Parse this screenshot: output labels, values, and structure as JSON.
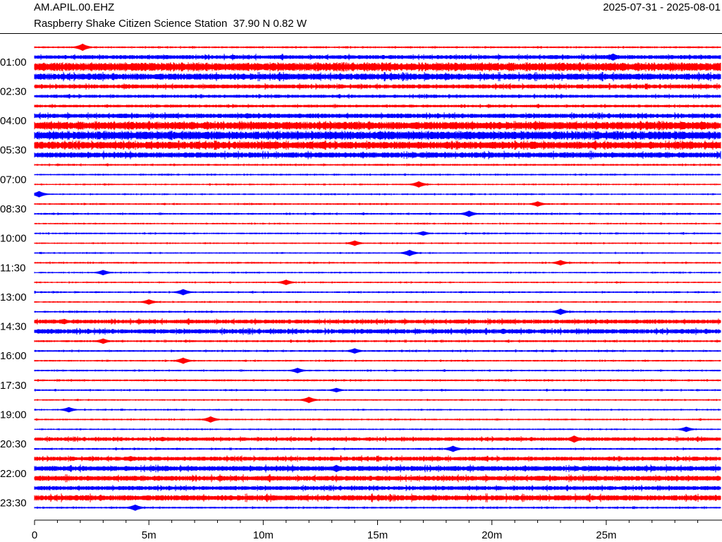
{
  "header": {
    "station_code": "AM.APIL.00.EHZ",
    "station_desc": "Raspberry Shake Citizen Science Station  37.90 N 0.82 W",
    "date_range": "2025-07-31 - 2025-08-01"
  },
  "colors": {
    "odd_trace": "#ff0000",
    "even_trace": "#0000ff",
    "axis": "#000000"
  },
  "chart_data": {
    "type": "line",
    "subtype": "helicorder",
    "rows_per_day": 48,
    "minutes_per_row": 30,
    "row_time_labels": [
      "01:00",
      "02:30",
      "04:00",
      "05:30",
      "07:00",
      "08:30",
      "10:00",
      "11:30",
      "13:00",
      "14:30",
      "16:00",
      "17:30",
      "19:00",
      "20:30",
      "22:00",
      "23:30"
    ],
    "row_label_hours": [
      1,
      2.5,
      4,
      5.5,
      7,
      8.5,
      10,
      11.5,
      13,
      14.5,
      16,
      17.5,
      19,
      20.5,
      22,
      23.5
    ],
    "x_axis": {
      "tick_labels": [
        "0",
        "5m",
        "10m",
        "15m",
        "20m",
        "25m"
      ],
      "tick_values_min": [
        0,
        5,
        10,
        15,
        20,
        25
      ],
      "xlim_min": [
        0,
        30
      ]
    },
    "row_amplitude": [
      0.2,
      0.45,
      0.9,
      0.7,
      0.45,
      0.35,
      0.3,
      0.5,
      0.85,
      0.9,
      0.8,
      0.6,
      0.2,
      0.18,
      0.16,
      0.16,
      0.18,
      0.2,
      0.16,
      0.18,
      0.16,
      0.16,
      0.18,
      0.16,
      0.16,
      0.18,
      0.16,
      0.2,
      0.45,
      0.5,
      0.22,
      0.2,
      0.18,
      0.18,
      0.2,
      0.18,
      0.16,
      0.16,
      0.18,
      0.16,
      0.4,
      0.2,
      0.45,
      0.55,
      0.55,
      0.45,
      0.6,
      0.2
    ],
    "events": [
      {
        "row": 0,
        "minute": 2.1,
        "amp": 0.8
      },
      {
        "row": 1,
        "minute": 25.3,
        "amp": 0.8
      },
      {
        "row": 3,
        "minute": 4.0,
        "amp": 0.5
      },
      {
        "row": 4,
        "minute": 4.0,
        "amp": 0.5
      },
      {
        "row": 7,
        "minute": 9.3,
        "amp": 0.6
      },
      {
        "row": 8,
        "minute": 16.0,
        "amp": 0.5
      },
      {
        "row": 9,
        "minute": 26.0,
        "amp": 0.6
      },
      {
        "row": 10,
        "minute": 25.0,
        "amp": 0.5
      },
      {
        "row": 14,
        "minute": 16.8,
        "amp": 0.7
      },
      {
        "row": 15,
        "minute": 0.2,
        "amp": 0.7
      },
      {
        "row": 16,
        "minute": 22.0,
        "amp": 0.6
      },
      {
        "row": 17,
        "minute": 19.0,
        "amp": 0.7
      },
      {
        "row": 19,
        "minute": 17.0,
        "amp": 0.5
      },
      {
        "row": 20,
        "minute": 14.0,
        "amp": 0.6
      },
      {
        "row": 21,
        "minute": 16.4,
        "amp": 0.7
      },
      {
        "row": 22,
        "minute": 23.0,
        "amp": 0.6
      },
      {
        "row": 23,
        "minute": 3.0,
        "amp": 0.6
      },
      {
        "row": 24,
        "minute": 11.0,
        "amp": 0.6
      },
      {
        "row": 25,
        "minute": 6.5,
        "amp": 0.7
      },
      {
        "row": 26,
        "minute": 5.0,
        "amp": 0.6
      },
      {
        "row": 27,
        "minute": 23.0,
        "amp": 0.7
      },
      {
        "row": 28,
        "minute": 1.3,
        "amp": 0.6
      },
      {
        "row": 29,
        "minute": 20.5,
        "amp": 0.6
      },
      {
        "row": 30,
        "minute": 3.0,
        "amp": 0.6
      },
      {
        "row": 31,
        "minute": 14.0,
        "amp": 0.6
      },
      {
        "row": 32,
        "minute": 6.5,
        "amp": 0.7
      },
      {
        "row": 33,
        "minute": 11.5,
        "amp": 0.6
      },
      {
        "row": 35,
        "minute": 13.2,
        "amp": 0.5
      },
      {
        "row": 36,
        "minute": 12.0,
        "amp": 0.7
      },
      {
        "row": 37,
        "minute": 1.5,
        "amp": 0.6
      },
      {
        "row": 38,
        "minute": 7.7,
        "amp": 0.7
      },
      {
        "row": 39,
        "minute": 28.5,
        "amp": 0.6
      },
      {
        "row": 40,
        "minute": 5.6,
        "amp": 0.5
      },
      {
        "row": 40,
        "minute": 23.6,
        "amp": 0.8
      },
      {
        "row": 41,
        "minute": 18.3,
        "amp": 0.7
      },
      {
        "row": 42,
        "minute": 4.2,
        "amp": 0.6
      },
      {
        "row": 43,
        "minute": 13.2,
        "amp": 0.8
      },
      {
        "row": 44,
        "minute": 6.0,
        "amp": 0.5
      },
      {
        "row": 47,
        "minute": 4.4,
        "amp": 0.7
      }
    ],
    "title": "",
    "xlabel": "",
    "ylabel": "",
    "grid": false,
    "legend": "none"
  }
}
